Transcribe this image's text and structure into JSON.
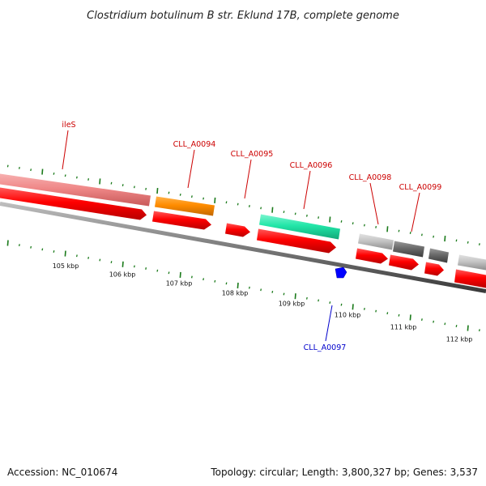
{
  "title": "Clostridium botulinum B str. Eklund 17B, complete genome",
  "footer": {
    "accession": "Accession: NC_010674",
    "stats": "Topology: circular; Length: 3,800,327 bp; Genes: 3,537"
  },
  "colors": {
    "pink": "#ef8787",
    "red": "#ff0000",
    "orange": "#ff8c00",
    "teal": "#22e6a8",
    "lightgray": "#c4c4c4",
    "darkgray": "#6a6a6a",
    "blue": "#0000ff",
    "tick": "#1a7a1a",
    "backbone": "#7a7a7a"
  },
  "kbp_labels": [
    "105 kbp",
    "106 kbp",
    "107 kbp",
    "108 kbp",
    "109 kbp",
    "110 kbp",
    "111 kbp",
    "112 kbp"
  ],
  "gene_labels": [
    "ileS",
    "CLL_A0094",
    "CLL_A0095",
    "CLL_A0096",
    "CLL_A0098",
    "CLL_A0099",
    "CLL_A0097"
  ]
}
